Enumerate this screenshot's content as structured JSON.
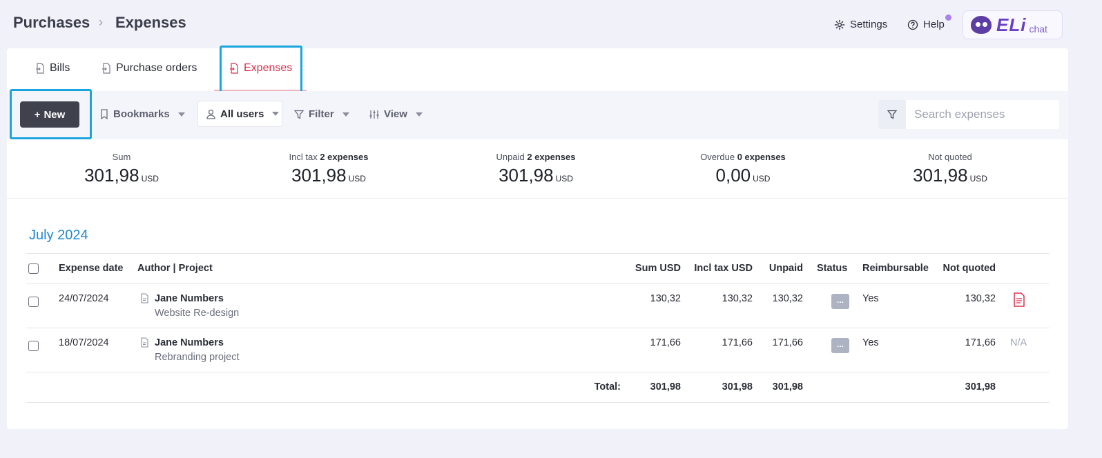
{
  "header": {
    "breadcrumb_root": "Purchases",
    "breadcrumb_current": "Expenses",
    "settings_label": "Settings",
    "help_label": "Help",
    "eli_logo_text": "ELi",
    "eli_chat_label": "chat"
  },
  "tabs": [
    {
      "label": "Bills",
      "icon": "document-arrow-icon"
    },
    {
      "label": "Purchase orders",
      "icon": "document-arrow-icon"
    },
    {
      "label": "Expenses",
      "icon": "document-expense-icon",
      "active": true
    }
  ],
  "toolbar": {
    "new_label": "New",
    "bookmarks_label": "Bookmarks",
    "users_label": "All users",
    "filter_label": "Filter",
    "view_label": "View",
    "search_placeholder": "Search expenses"
  },
  "stats": [
    {
      "label": "Sum",
      "count": "",
      "value": "301,98",
      "currency": "USD"
    },
    {
      "label": "Incl tax",
      "count": "2 expenses",
      "value": "301,98",
      "currency": "USD"
    },
    {
      "label": "Unpaid",
      "count": "2 expenses",
      "value": "301,98",
      "currency": "USD"
    },
    {
      "label": "Overdue",
      "count": "0 expenses",
      "value": "0,00",
      "currency": "USD"
    },
    {
      "label": "Not quoted",
      "count": "",
      "value": "301,98",
      "currency": "USD"
    }
  ],
  "month_title": "July 2024",
  "table": {
    "columns": [
      "Expense date",
      "Author | Project",
      "Sum USD",
      "Incl tax USD",
      "Unpaid",
      "Status",
      "Reimbursable",
      "Not quoted"
    ],
    "rows": [
      {
        "date": "24/07/2024",
        "author": "Jane Numbers",
        "project": "Website Re-design",
        "sum": "130,32",
        "incl_tax": "130,32",
        "unpaid": "130,32",
        "status": "...",
        "reimbursable": "Yes",
        "not_quoted": "130,32",
        "attachment": "pdf-icon"
      },
      {
        "date": "18/07/2024",
        "author": "Jane Numbers",
        "project": "Rebranding project",
        "sum": "171,66",
        "incl_tax": "171,66",
        "unpaid": "171,66",
        "status": "...",
        "reimbursable": "Yes",
        "not_quoted": "171,66",
        "attachment": "N/A"
      }
    ],
    "totals": {
      "label": "Total:",
      "sum": "301,98",
      "incl_tax": "301,98",
      "unpaid": "301,98",
      "not_quoted": "301,98"
    }
  },
  "colors": {
    "accent_red": "#d8314c",
    "month_blue": "#1e88d6",
    "highlight": "#1aa5dc",
    "new_button": "#3f424c"
  }
}
